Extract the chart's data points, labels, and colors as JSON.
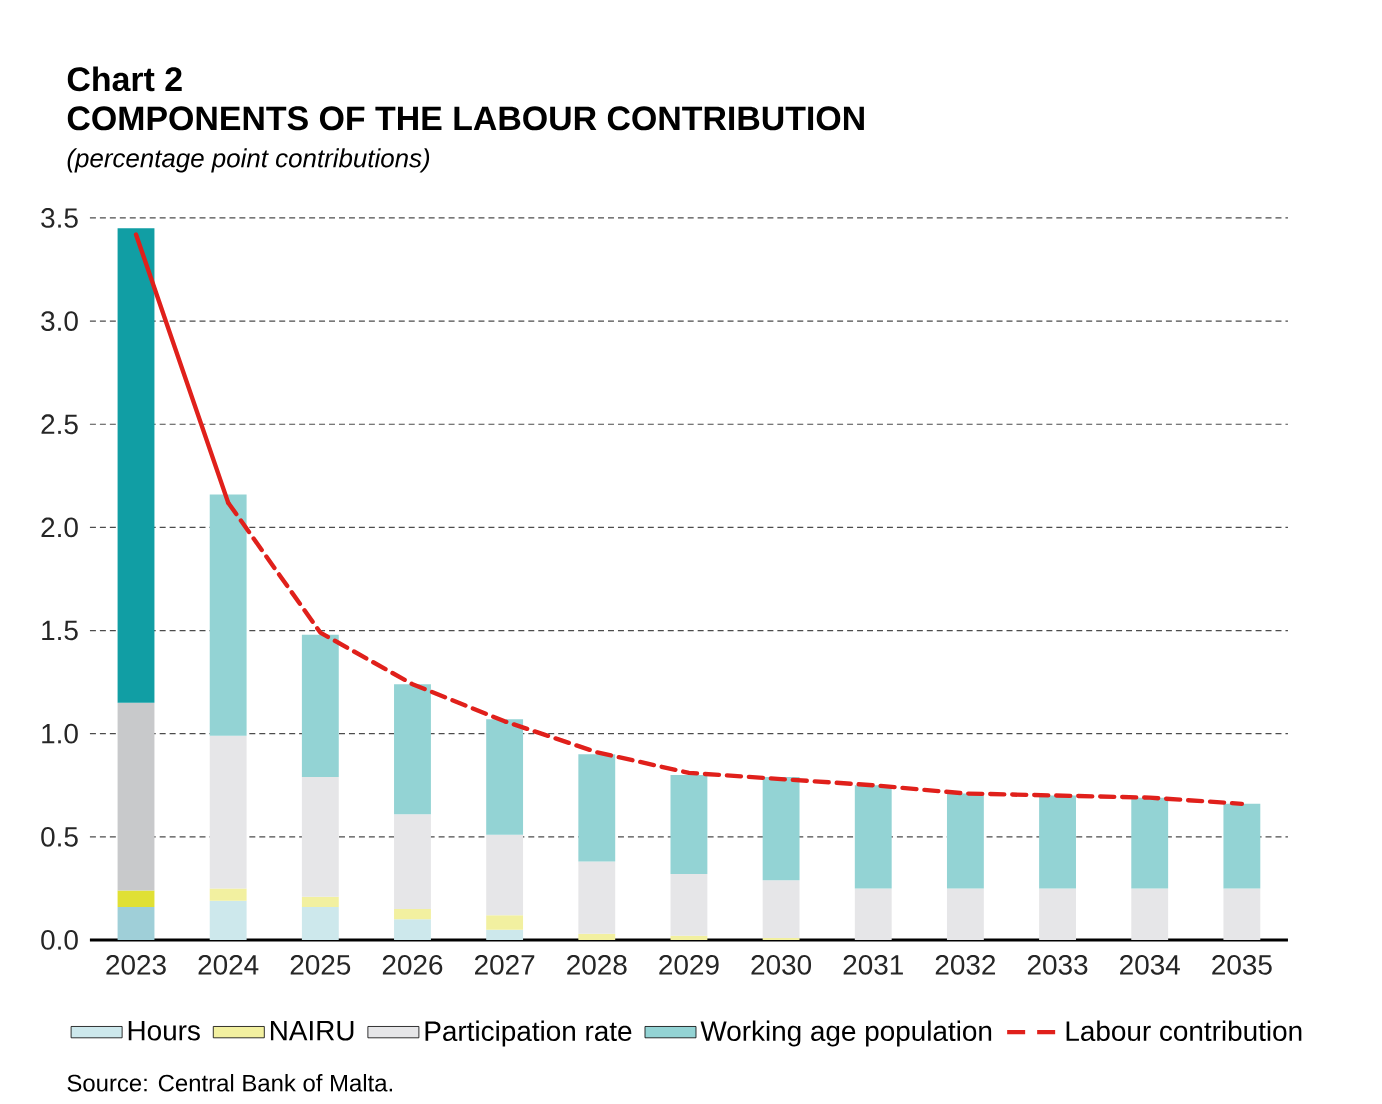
{
  "chart_data": {
    "type": "bar",
    "stacked": true,
    "title": "Chart 2",
    "subtitle": "COMPONENTS OF THE LABOUR CONTRIBUTION",
    "ylabel": "(percentage point contributions)",
    "annotations": [
      "Source: Central Bank of Malta."
    ],
    "categories": [
      "2023",
      "2024",
      "2025",
      "2026",
      "2027",
      "2028",
      "2029",
      "2030",
      "2031",
      "2032",
      "2033",
      "2034",
      "2035"
    ],
    "series": [
      {
        "name": "Hours",
        "color": "#cde8ec",
        "colors": [
          "#9fcfd8",
          "#cde8ec",
          "#cde8ec",
          "#cde8ec",
          "#cde8ec",
          "#cde8ec",
          "#cde8ec",
          "#cde8ec",
          "#cde8ec",
          "#cde8ec",
          "#cde8ec",
          "#cde8ec",
          "#cde8ec"
        ],
        "values": [
          0.16,
          0.19,
          0.16,
          0.1,
          0.05,
          0,
          0,
          0,
          0,
          0,
          0,
          0,
          0
        ]
      },
      {
        "name": "NAIRU",
        "color": "#f2f0a0",
        "colors": [
          "#e0e034",
          "#f2f0a0",
          "#f2f0a0",
          "#f2f0a0",
          "#f2f0a0",
          "#f2f0a0",
          "#f2f0a0",
          "#f2f0a0",
          "#f2f0a0",
          "#f2f0a0",
          "#f2f0a0",
          "#f2f0a0",
          "#f2f0a0"
        ],
        "values": [
          0.08,
          0.06,
          0.05,
          0.05,
          0.07,
          0.03,
          0.02,
          0.01,
          0,
          0,
          0,
          0,
          0
        ]
      },
      {
        "name": "Participation rate",
        "color": "#e6e6e8",
        "colors": [
          "#c8c9cb",
          "#e6e6e8",
          "#e6e6e8",
          "#e6e6e8",
          "#e6e6e8",
          "#e6e6e8",
          "#e6e6e8",
          "#e6e6e8",
          "#e6e6e8",
          "#e6e6e8",
          "#e6e6e8",
          "#e6e6e8",
          "#e6e6e8"
        ],
        "values": [
          0.91,
          0.74,
          0.58,
          0.46,
          0.39,
          0.35,
          0.3,
          0.28,
          0.25,
          0.25,
          0.25,
          0.25,
          0.25
        ]
      },
      {
        "name": "Working age population",
        "color": "#93d3d4",
        "colors": [
          "#119ea4",
          "#93d3d4",
          "#93d3d4",
          "#93d3d4",
          "#93d3d4",
          "#93d3d4",
          "#93d3d4",
          "#93d3d4",
          "#93d3d4",
          "#93d3d4",
          "#93d3d4",
          "#93d3d4",
          "#93d3d4"
        ],
        "values": [
          2.3,
          1.17,
          0.69,
          0.63,
          0.56,
          0.52,
          0.48,
          0.5,
          0.5,
          0.46,
          0.45,
          0.44,
          0.41
        ]
      },
      {
        "type": "line",
        "color": "#e0201b",
        "line_style": "solid",
        "values": [
          3.42,
          2.12,
          null,
          null,
          null,
          null,
          null,
          null,
          null,
          null,
          null,
          null,
          null
        ]
      },
      {
        "name": "Labour contribution",
        "type": "line",
        "color": "#e0201b",
        "line_style": "dashed",
        "values": [
          null,
          2.12,
          1.49,
          1.24,
          1.06,
          0.91,
          0.81,
          0.78,
          0.75,
          0.71,
          0.7,
          0.69,
          0.66
        ]
      }
    ],
    "ylim": [
      0,
      3.5
    ],
    "yticks": [
      {
        "value": 0,
        "label": "0.0"
      },
      {
        "value": 0.5,
        "label": "0.5"
      },
      {
        "value": 1,
        "label": "1.0"
      },
      {
        "value": 1.5,
        "label": "1.5"
      },
      {
        "value": 2,
        "label": "2.0"
      },
      {
        "value": 2.5,
        "label": "2.5"
      },
      {
        "value": 3,
        "label": "3.0"
      },
      {
        "value": 3.5,
        "label": "3.5"
      }
    ],
    "grid": "y",
    "legend": "bottom"
  }
}
